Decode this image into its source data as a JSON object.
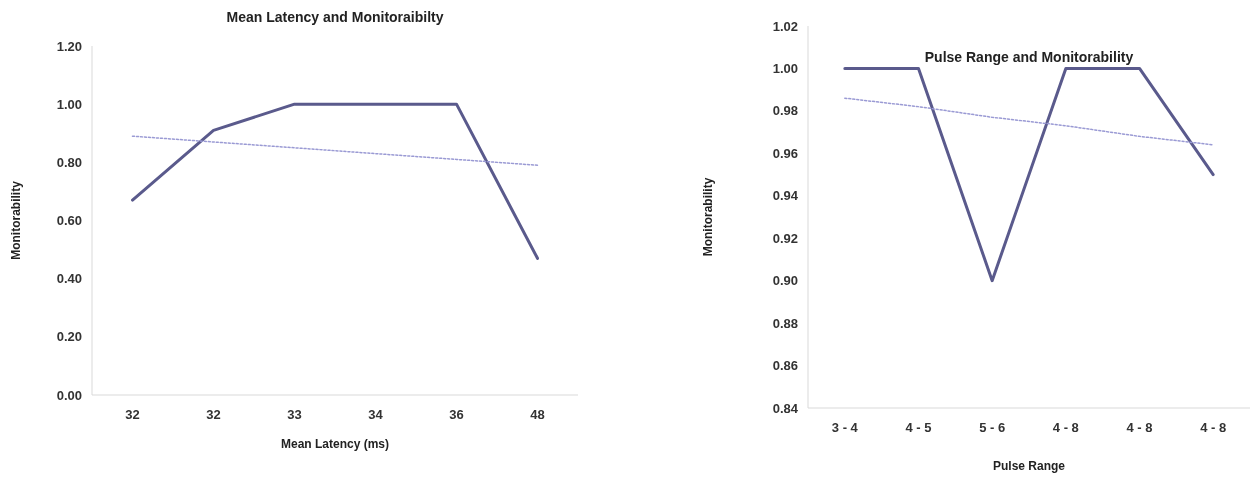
{
  "chart_data": [
    {
      "type": "line",
      "title": "Mean Latency and Monitoraibilty",
      "xlabel": "Mean Latency (ms)",
      "ylabel": "Monitorability",
      "categories": [
        "32",
        "32",
        "33",
        "34",
        "36",
        "48"
      ],
      "ylim": [
        0,
        1.2
      ],
      "yticks": [
        {
          "value": 0,
          "label": "0.00"
        },
        {
          "value": 0.2,
          "label": "0.20"
        },
        {
          "value": 0.4,
          "label": "0.40"
        },
        {
          "value": 0.6,
          "label": "0.60"
        },
        {
          "value": 0.8,
          "label": "0.80"
        },
        {
          "value": 1,
          "label": "1.00"
        },
        {
          "value": 1.2,
          "label": "1.20"
        }
      ],
      "series": [
        {
          "color": "#5a5a8c",
          "values": [
            0.67,
            0.91,
            1.0,
            1.0,
            1.0,
            0.47
          ]
        },
        {
          "color": "#9a9ad4",
          "line_style": "dotted",
          "values": [
            0.89,
            0.87,
            0.85,
            0.83,
            0.81,
            0.79
          ]
        }
      ]
    },
    {
      "type": "line",
      "title": "Pulse Range and Monitorability",
      "xlabel": "Pulse Range",
      "ylabel": "Monitorability",
      "categories": [
        "3 - 4",
        "4 - 5",
        "5 - 6",
        "4 - 8",
        "4 - 8",
        "4 - 8"
      ],
      "ylim": [
        0.84,
        1.02
      ],
      "yticks": [
        {
          "value": 0.84,
          "label": "0.84"
        },
        {
          "value": 0.86,
          "label": "0.86"
        },
        {
          "value": 0.88,
          "label": "0.88"
        },
        {
          "value": 0.9,
          "label": "0.90"
        },
        {
          "value": 0.92,
          "label": "0.92"
        },
        {
          "value": 0.94,
          "label": "0.94"
        },
        {
          "value": 0.96,
          "label": "0.96"
        },
        {
          "value": 0.98,
          "label": "0.98"
        },
        {
          "value": 1.0,
          "label": "1.00"
        },
        {
          "value": 1.02,
          "label": "1.02"
        }
      ],
      "series": [
        {
          "color": "#5a5a8c",
          "values": [
            1.0,
            1.0,
            0.9,
            1.0,
            1.0,
            0.95
          ]
        },
        {
          "color": "#9a9ad4",
          "line_style": "dotted",
          "values": [
            0.986,
            0.982,
            0.977,
            0.973,
            0.968,
            0.964
          ]
        }
      ]
    }
  ]
}
